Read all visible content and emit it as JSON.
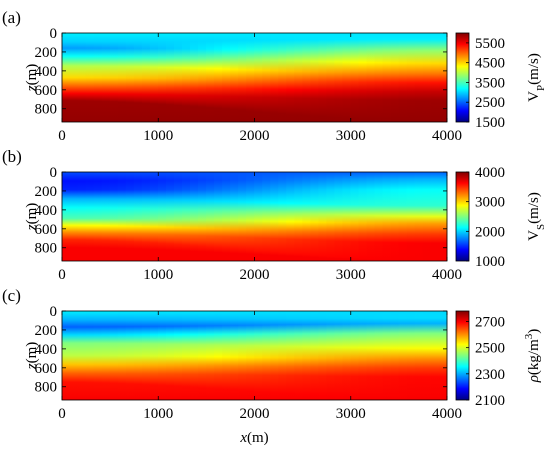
{
  "chart_data": [
    {
      "type": "heatmap",
      "panel_label": "(a)",
      "xlim": [
        0,
        4000
      ],
      "xticks": [
        0,
        1000,
        2000,
        3000,
        4000
      ],
      "ylim": [
        0,
        940
      ],
      "yticks": [
        0,
        200,
        400,
        600,
        800
      ],
      "y_inverted": true,
      "ylabel": {
        "var": "z",
        "unit": "(m)"
      },
      "colormap": "jet",
      "clim": [
        1500,
        6000
      ],
      "cticks": [
        1500,
        2500,
        3500,
        4500,
        5500
      ],
      "colorbar_label": [
        {
          "text": "V"
        },
        {
          "text": "P",
          "script": "sub"
        },
        {
          "text": "(m/s)"
        }
      ]
    },
    {
      "type": "heatmap",
      "panel_label": "(b)",
      "xlim": [
        0,
        4000
      ],
      "xticks": [
        0,
        1000,
        2000,
        3000,
        4000
      ],
      "ylim": [
        0,
        940
      ],
      "yticks": [
        0,
        200,
        400,
        600,
        800
      ],
      "y_inverted": true,
      "ylabel": {
        "var": "z",
        "unit": "(m)"
      },
      "colormap": "jet",
      "clim": [
        1000,
        4000
      ],
      "cticks": [
        1000,
        2000,
        3000,
        4000
      ],
      "colorbar_label": [
        {
          "text": "V"
        },
        {
          "text": "S",
          "script": "sub"
        },
        {
          "text": "(m/s)"
        }
      ]
    },
    {
      "type": "heatmap",
      "panel_label": "(c)",
      "xlim": [
        0,
        4000
      ],
      "xticks": [
        0,
        1000,
        2000,
        3000,
        4000
      ],
      "ylim": [
        0,
        940
      ],
      "yticks": [
        0,
        200,
        400,
        600,
        800
      ],
      "y_inverted": true,
      "ylabel": {
        "var": "z",
        "unit": "(m)"
      },
      "xlabel": {
        "var": "x",
        "unit": "(m)"
      },
      "colormap": "jet",
      "clim": [
        2100,
        2780
      ],
      "cticks": [
        2100,
        2300,
        2500,
        2700
      ],
      "colorbar_label": [
        {
          "text": "ρ"
        },
        {
          "text": "(kg/m"
        },
        {
          "text": "3",
          "script": "sup"
        },
        {
          "text": ")"
        }
      ]
    }
  ]
}
